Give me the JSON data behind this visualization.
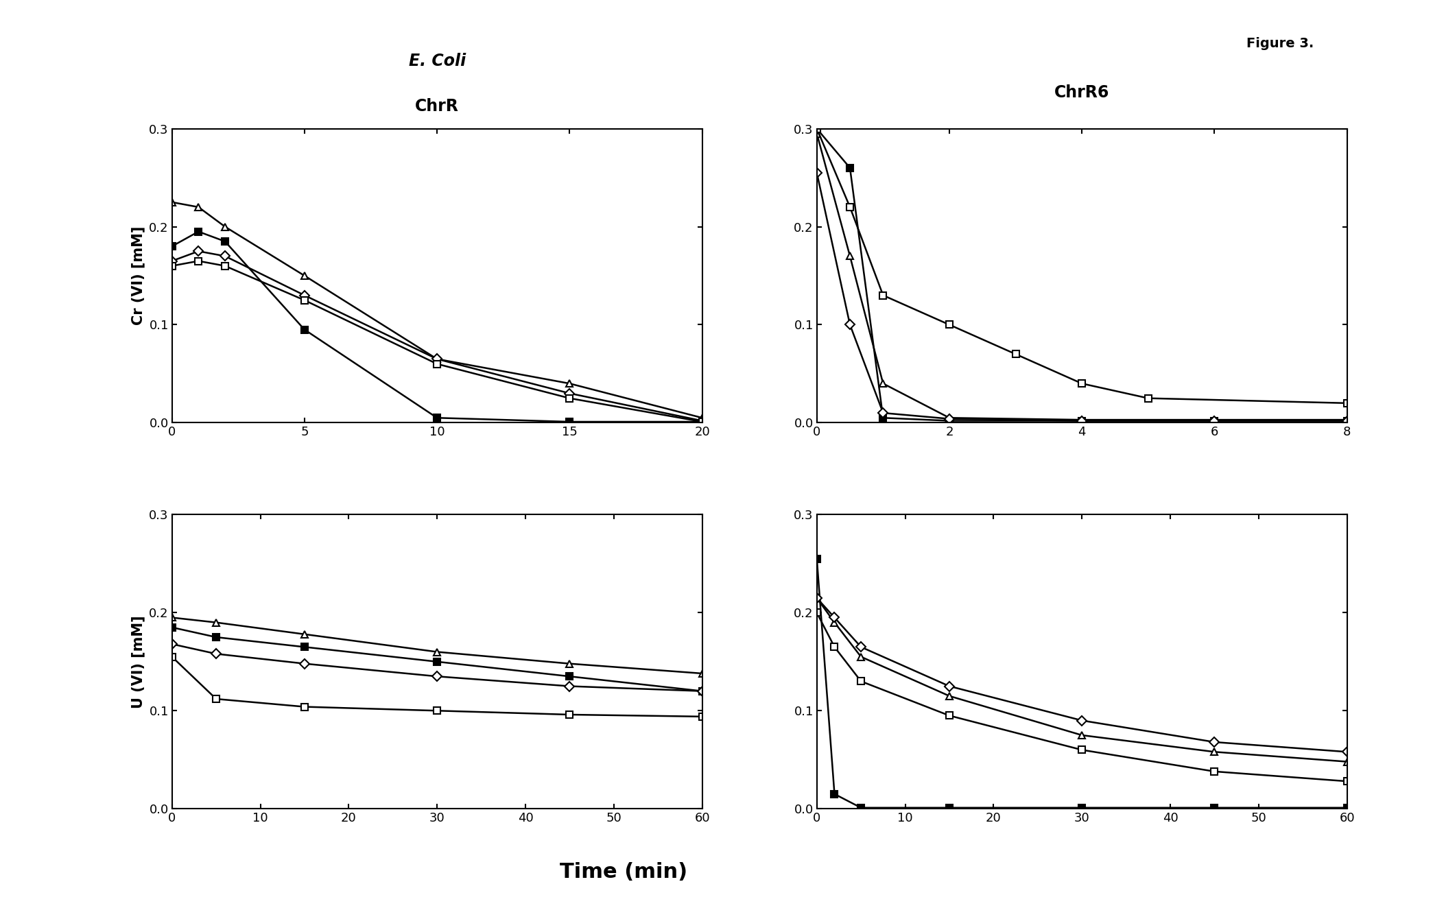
{
  "figure_title": "Figure 3.",
  "col_title_left_line1": "E. Coli",
  "col_title_left_line2": "ChrR",
  "col_title_right": "ChrR6",
  "ylabel_top": "Cr (VI) [mM]",
  "ylabel_bottom": "U (VI) [mM]",
  "xlabel": "Time (min)",
  "ax_tl": {
    "xlim": [
      0,
      20
    ],
    "xticks": [
      0,
      5,
      10,
      15,
      20
    ],
    "ylim": [
      0.0,
      0.3
    ],
    "yticks": [
      0.0,
      0.1,
      0.2,
      0.3
    ],
    "series": [
      {
        "x": [
          0,
          1,
          2,
          5,
          10,
          15,
          20
        ],
        "y": [
          0.18,
          0.195,
          0.185,
          0.095,
          0.005,
          0.001,
          0.001
        ],
        "marker": "s",
        "filled": true
      },
      {
        "x": [
          0,
          1,
          2,
          5,
          10,
          15,
          20
        ],
        "y": [
          0.225,
          0.22,
          0.2,
          0.15,
          0.065,
          0.04,
          0.005
        ],
        "marker": "^",
        "filled": false
      },
      {
        "x": [
          0,
          1,
          2,
          5,
          10,
          15,
          20
        ],
        "y": [
          0.165,
          0.175,
          0.17,
          0.13,
          0.065,
          0.03,
          0.002
        ],
        "marker": "D",
        "filled": false
      },
      {
        "x": [
          0,
          1,
          2,
          5,
          10,
          15,
          20
        ],
        "y": [
          0.16,
          0.165,
          0.16,
          0.125,
          0.06,
          0.025,
          0.001
        ],
        "marker": "s",
        "filled": false
      }
    ]
  },
  "ax_tr": {
    "xlim": [
      0,
      8
    ],
    "xticks": [
      0,
      2,
      4,
      6,
      8
    ],
    "ylim": [
      0.0,
      0.3
    ],
    "yticks": [
      0.0,
      0.1,
      0.2,
      0.3
    ],
    "series": [
      {
        "x": [
          0,
          0.5,
          1,
          2,
          4,
          6,
          8
        ],
        "y": [
          0.3,
          0.26,
          0.005,
          0.002,
          0.002,
          0.002,
          0.002
        ],
        "marker": "s",
        "filled": true
      },
      {
        "x": [
          0,
          0.5,
          1,
          2,
          4,
          6,
          8
        ],
        "y": [
          0.295,
          0.17,
          0.04,
          0.005,
          0.003,
          0.003,
          0.003
        ],
        "marker": "^",
        "filled": false
      },
      {
        "x": [
          0,
          0.5,
          1,
          2,
          4,
          6,
          8
        ],
        "y": [
          0.255,
          0.1,
          0.01,
          0.004,
          0.002,
          0.002,
          0.002
        ],
        "marker": "D",
        "filled": false
      },
      {
        "x": [
          0,
          0.5,
          1,
          2,
          3,
          4,
          5,
          8
        ],
        "y": [
          0.3,
          0.22,
          0.13,
          0.1,
          0.07,
          0.04,
          0.025,
          0.02
        ],
        "marker": "s",
        "filled": false
      }
    ]
  },
  "ax_bl": {
    "xlim": [
      0,
      60
    ],
    "xticks": [
      0,
      10,
      20,
      30,
      40,
      50,
      60
    ],
    "ylim": [
      0.0,
      0.3
    ],
    "yticks": [
      0.0,
      0.1,
      0.2,
      0.3
    ],
    "series": [
      {
        "x": [
          0,
          5,
          15,
          30,
          45,
          60
        ],
        "y": [
          0.185,
          0.175,
          0.165,
          0.15,
          0.135,
          0.12
        ],
        "marker": "s",
        "filled": true
      },
      {
        "x": [
          0,
          5,
          15,
          30,
          45,
          60
        ],
        "y": [
          0.195,
          0.19,
          0.178,
          0.16,
          0.148,
          0.138
        ],
        "marker": "^",
        "filled": false
      },
      {
        "x": [
          0,
          5,
          15,
          30,
          45,
          60
        ],
        "y": [
          0.168,
          0.158,
          0.148,
          0.135,
          0.125,
          0.12
        ],
        "marker": "D",
        "filled": false
      },
      {
        "x": [
          0,
          5,
          15,
          30,
          45,
          60
        ],
        "y": [
          0.155,
          0.112,
          0.104,
          0.1,
          0.096,
          0.094
        ],
        "marker": "s",
        "filled": false
      }
    ]
  },
  "ax_br": {
    "xlim": [
      0,
      60
    ],
    "xticks": [
      0,
      10,
      20,
      30,
      40,
      50,
      60
    ],
    "ylim": [
      0.0,
      0.3
    ],
    "yticks": [
      0.0,
      0.1,
      0.2,
      0.3
    ],
    "series": [
      {
        "x": [
          0,
          2,
          5,
          15,
          30,
          45,
          60
        ],
        "y": [
          0.255,
          0.015,
          0.001,
          0.001,
          0.001,
          0.001,
          0.001
        ],
        "marker": "s",
        "filled": true
      },
      {
        "x": [
          0,
          2,
          5,
          15,
          30,
          45,
          60
        ],
        "y": [
          0.215,
          0.19,
          0.155,
          0.115,
          0.075,
          0.058,
          0.048
        ],
        "marker": "^",
        "filled": false
      },
      {
        "x": [
          0,
          2,
          5,
          15,
          30,
          45,
          60
        ],
        "y": [
          0.215,
          0.195,
          0.165,
          0.125,
          0.09,
          0.068,
          0.058
        ],
        "marker": "D",
        "filled": false
      },
      {
        "x": [
          0,
          2,
          5,
          15,
          30,
          45,
          60
        ],
        "y": [
          0.2,
          0.165,
          0.13,
          0.095,
          0.06,
          0.038,
          0.028
        ],
        "marker": "s",
        "filled": false
      }
    ]
  },
  "linewidth": 1.8,
  "markersize": 7,
  "markeredgewidth": 1.5,
  "color": "black",
  "background_color": "white",
  "tick_labelsize": 13,
  "ylabel_fontsize": 15,
  "title_fontsize": 17,
  "xlabel_fontsize": 22
}
